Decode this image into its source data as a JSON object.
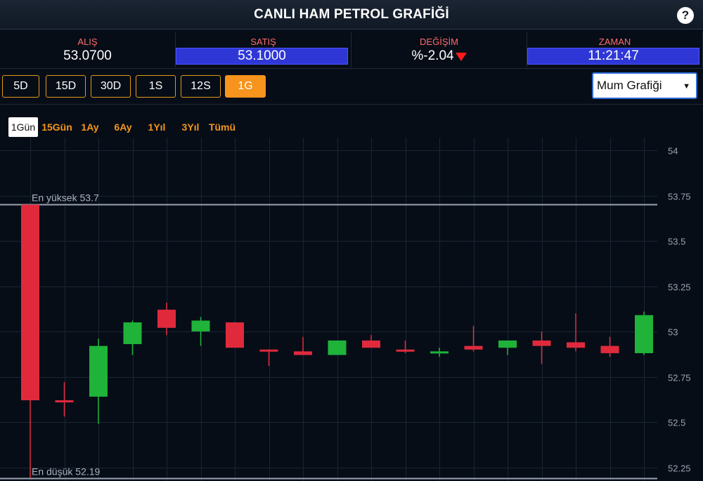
{
  "header": {
    "title": "CANLI HAM PETROL GRAFİĞİ",
    "help_label": "?"
  },
  "stats": [
    {
      "label": "ALIŞ",
      "value": "53.0700",
      "highlight": false
    },
    {
      "label": "SATIŞ",
      "value": "53.1000",
      "highlight": true
    },
    {
      "label": "DEĞİŞİM",
      "value": "%-2.04",
      "highlight": false,
      "trend": "down"
    },
    {
      "label": "ZAMAN",
      "value": "11:21:47",
      "highlight": true
    }
  ],
  "range_buttons": [
    {
      "label": "5D",
      "active": false
    },
    {
      "label": "15D",
      "active": false
    },
    {
      "label": "30D",
      "active": false
    },
    {
      "label": "1S",
      "active": false
    },
    {
      "label": "12S",
      "active": false
    },
    {
      "label": "1G",
      "active": true
    }
  ],
  "chart_type_select": {
    "selected": "Mum Grafiği"
  },
  "periods": [
    {
      "label": "1Gün",
      "active": true
    },
    {
      "label": "15Gün",
      "active": false
    },
    {
      "label": "1Ay",
      "active": false
    },
    {
      "label": "6Ay",
      "active": false
    },
    {
      "label": "1Yıl",
      "active": false
    },
    {
      "label": "3Yıl",
      "active": false
    },
    {
      "label": "Tümü",
      "active": false
    }
  ],
  "colors": {
    "up": "#1fb33a",
    "down": "#e02a3c",
    "accent": "#f6941d",
    "highlight": "#2e37d6",
    "background": "#060d17"
  },
  "chart_data": {
    "type": "candlestick",
    "title": "",
    "xlabel": "",
    "ylabel": "",
    "ylim": [
      52.2,
      54.0
    ],
    "y_ticks": [
      "54",
      "53.75",
      "53.5",
      "53.25",
      "53",
      "52.75",
      "52.5",
      "52.25"
    ],
    "y_tick_values": [
      54,
      53.75,
      53.5,
      53.25,
      53,
      52.75,
      52.5,
      52.25
    ],
    "high_line": {
      "label": "En yüksek 53.7",
      "value": 53.7
    },
    "low_line": {
      "label": "En düşük 52.19",
      "value": 52.19
    },
    "grid": true,
    "candles": [
      {
        "open": 53.7,
        "high": 53.7,
        "low": 52.19,
        "close": 52.62
      },
      {
        "open": 52.62,
        "high": 52.72,
        "low": 52.53,
        "close": 52.61
      },
      {
        "open": 52.64,
        "high": 52.96,
        "low": 52.49,
        "close": 52.92
      },
      {
        "open": 52.93,
        "high": 53.06,
        "low": 52.87,
        "close": 53.05
      },
      {
        "open": 53.12,
        "high": 53.16,
        "low": 52.98,
        "close": 53.02
      },
      {
        "open": 53.0,
        "high": 53.08,
        "low": 52.92,
        "close": 53.06
      },
      {
        "open": 53.05,
        "high": 53.05,
        "low": 52.91,
        "close": 52.91
      },
      {
        "open": 52.9,
        "high": 52.9,
        "low": 52.81,
        "close": 52.89
      },
      {
        "open": 52.89,
        "high": 52.97,
        "low": 52.87,
        "close": 52.87
      },
      {
        "open": 52.87,
        "high": 52.95,
        "low": 52.87,
        "close": 52.95
      },
      {
        "open": 52.95,
        "high": 52.98,
        "low": 52.91,
        "close": 52.91
      },
      {
        "open": 52.9,
        "high": 52.95,
        "low": 52.88,
        "close": 52.89
      },
      {
        "open": 52.89,
        "high": 52.91,
        "low": 52.86,
        "close": 52.89
      },
      {
        "open": 52.92,
        "high": 53.03,
        "low": 52.89,
        "close": 52.9
      },
      {
        "open": 52.91,
        "high": 52.95,
        "low": 52.87,
        "close": 52.95
      },
      {
        "open": 52.95,
        "high": 53.0,
        "low": 52.82,
        "close": 52.92
      },
      {
        "open": 52.94,
        "high": 53.1,
        "low": 52.89,
        "close": 52.91
      },
      {
        "open": 52.92,
        "high": 52.97,
        "low": 52.86,
        "close": 52.88
      },
      {
        "open": 52.88,
        "high": 53.11,
        "low": 52.87,
        "close": 53.09
      }
    ]
  }
}
